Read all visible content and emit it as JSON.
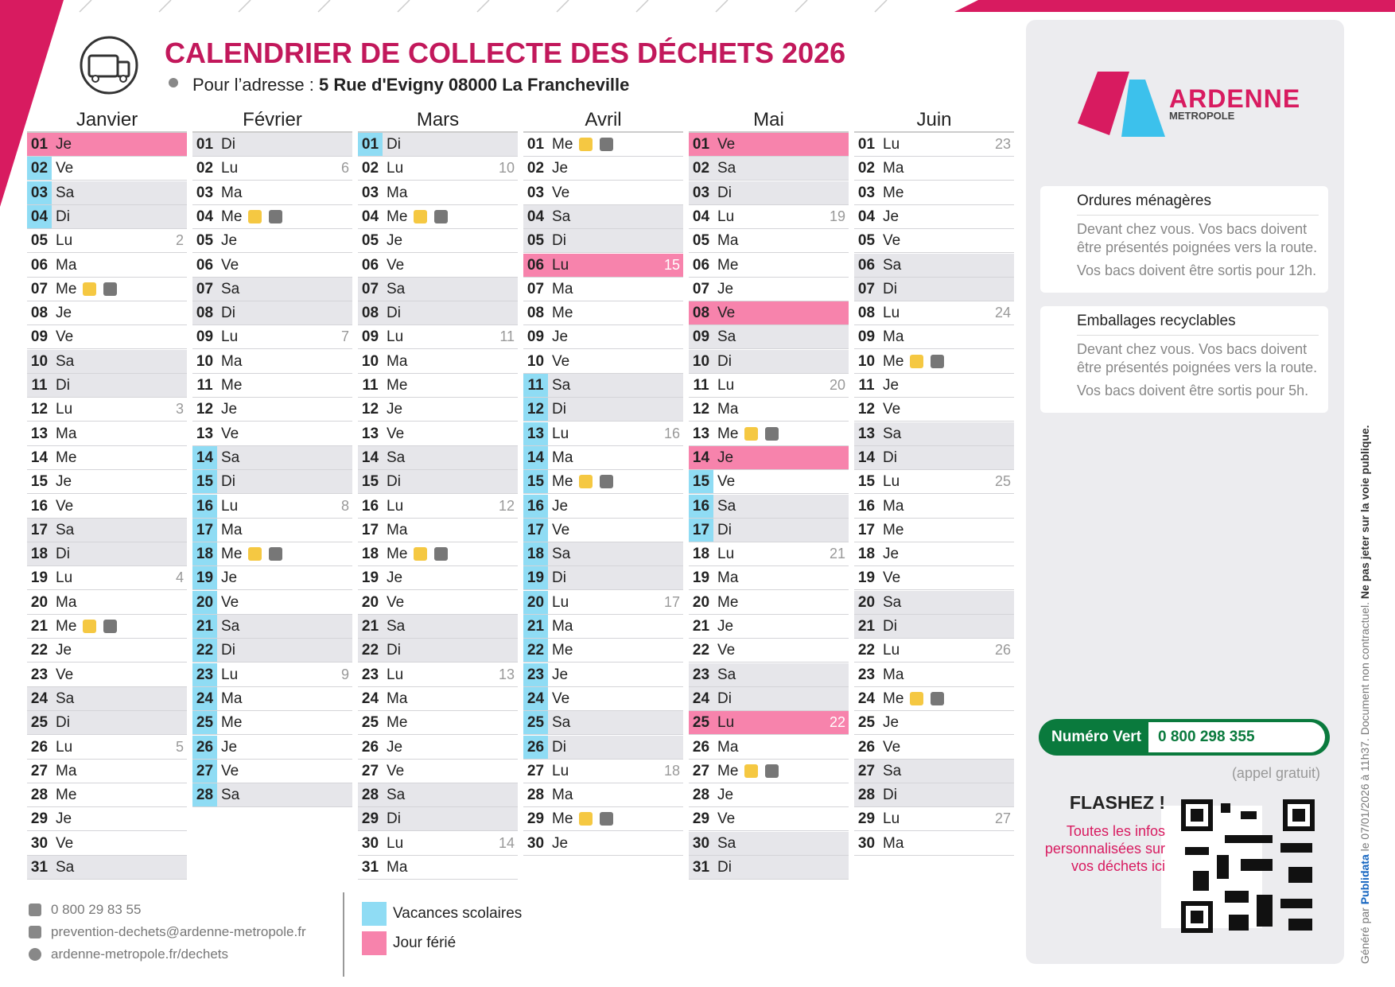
{
  "header": {
    "title": "CALENDRIER DE COLLECTE DES DÉCHETS 2026",
    "address_label": "Pour l’adresse :",
    "address": "5 Rue d'Evigny 08000 La Francheville"
  },
  "months": [
    {
      "name": "Janvier",
      "days": [
        {
          "d": "01",
          "w": "Je",
          "fer": true
        },
        {
          "d": "02",
          "w": "Ve",
          "vac": true
        },
        {
          "d": "03",
          "w": "Sa",
          "we": true,
          "vac": true
        },
        {
          "d": "04",
          "w": "Di",
          "we": true,
          "vac": true
        },
        {
          "d": "05",
          "w": "Lu",
          "wk": 2
        },
        {
          "d": "06",
          "w": "Ma"
        },
        {
          "d": "07",
          "w": "Me",
          "col": true
        },
        {
          "d": "08",
          "w": "Je"
        },
        {
          "d": "09",
          "w": "Ve"
        },
        {
          "d": "10",
          "w": "Sa",
          "we": true
        },
        {
          "d": "11",
          "w": "Di",
          "we": true
        },
        {
          "d": "12",
          "w": "Lu",
          "wk": 3
        },
        {
          "d": "13",
          "w": "Ma"
        },
        {
          "d": "14",
          "w": "Me"
        },
        {
          "d": "15",
          "w": "Je"
        },
        {
          "d": "16",
          "w": "Ve"
        },
        {
          "d": "17",
          "w": "Sa",
          "we": true
        },
        {
          "d": "18",
          "w": "Di",
          "we": true
        },
        {
          "d": "19",
          "w": "Lu",
          "wk": 4
        },
        {
          "d": "20",
          "w": "Ma"
        },
        {
          "d": "21",
          "w": "Me",
          "col": true
        },
        {
          "d": "22",
          "w": "Je"
        },
        {
          "d": "23",
          "w": "Ve"
        },
        {
          "d": "24",
          "w": "Sa",
          "we": true
        },
        {
          "d": "25",
          "w": "Di",
          "we": true
        },
        {
          "d": "26",
          "w": "Lu",
          "wk": 5
        },
        {
          "d": "27",
          "w": "Ma"
        },
        {
          "d": "28",
          "w": "Me"
        },
        {
          "d": "29",
          "w": "Je"
        },
        {
          "d": "30",
          "w": "Ve"
        },
        {
          "d": "31",
          "w": "Sa",
          "we": true
        }
      ]
    },
    {
      "name": "Février",
      "days": [
        {
          "d": "01",
          "w": "Di",
          "we": true
        },
        {
          "d": "02",
          "w": "Lu",
          "wk": 6
        },
        {
          "d": "03",
          "w": "Ma"
        },
        {
          "d": "04",
          "w": "Me",
          "col": true
        },
        {
          "d": "05",
          "w": "Je"
        },
        {
          "d": "06",
          "w": "Ve"
        },
        {
          "d": "07",
          "w": "Sa",
          "we": true
        },
        {
          "d": "08",
          "w": "Di",
          "we": true
        },
        {
          "d": "09",
          "w": "Lu",
          "wk": 7
        },
        {
          "d": "10",
          "w": "Ma"
        },
        {
          "d": "11",
          "w": "Me"
        },
        {
          "d": "12",
          "w": "Je"
        },
        {
          "d": "13",
          "w": "Ve"
        },
        {
          "d": "14",
          "w": "Sa",
          "we": true,
          "vac": true
        },
        {
          "d": "15",
          "w": "Di",
          "we": true,
          "vac": true
        },
        {
          "d": "16",
          "w": "Lu",
          "wk": 8,
          "vac": true
        },
        {
          "d": "17",
          "w": "Ma",
          "vac": true
        },
        {
          "d": "18",
          "w": "Me",
          "col": true,
          "vac": true
        },
        {
          "d": "19",
          "w": "Je",
          "vac": true
        },
        {
          "d": "20",
          "w": "Ve",
          "vac": true
        },
        {
          "d": "21",
          "w": "Sa",
          "we": true,
          "vac": true
        },
        {
          "d": "22",
          "w": "Di",
          "we": true,
          "vac": true
        },
        {
          "d": "23",
          "w": "Lu",
          "wk": 9,
          "vac": true
        },
        {
          "d": "24",
          "w": "Ma",
          "vac": true
        },
        {
          "d": "25",
          "w": "Me",
          "vac": true
        },
        {
          "d": "26",
          "w": "Je",
          "vac": true
        },
        {
          "d": "27",
          "w": "Ve",
          "vac": true
        },
        {
          "d": "28",
          "w": "Sa",
          "we": true,
          "vac": true
        }
      ]
    },
    {
      "name": "Mars",
      "days": [
        {
          "d": "01",
          "w": "Di",
          "we": true,
          "vac": true
        },
        {
          "d": "02",
          "w": "Lu",
          "wk": 10
        },
        {
          "d": "03",
          "w": "Ma"
        },
        {
          "d": "04",
          "w": "Me",
          "col": true
        },
        {
          "d": "05",
          "w": "Je"
        },
        {
          "d": "06",
          "w": "Ve"
        },
        {
          "d": "07",
          "w": "Sa",
          "we": true
        },
        {
          "d": "08",
          "w": "Di",
          "we": true
        },
        {
          "d": "09",
          "w": "Lu",
          "wk": 11
        },
        {
          "d": "10",
          "w": "Ma"
        },
        {
          "d": "11",
          "w": "Me"
        },
        {
          "d": "12",
          "w": "Je"
        },
        {
          "d": "13",
          "w": "Ve"
        },
        {
          "d": "14",
          "w": "Sa",
          "we": true
        },
        {
          "d": "15",
          "w": "Di",
          "we": true
        },
        {
          "d": "16",
          "w": "Lu",
          "wk": 12
        },
        {
          "d": "17",
          "w": "Ma"
        },
        {
          "d": "18",
          "w": "Me",
          "col": true
        },
        {
          "d": "19",
          "w": "Je"
        },
        {
          "d": "20",
          "w": "Ve"
        },
        {
          "d": "21",
          "w": "Sa",
          "we": true
        },
        {
          "d": "22",
          "w": "Di",
          "we": true
        },
        {
          "d": "23",
          "w": "Lu",
          "wk": 13
        },
        {
          "d": "24",
          "w": "Ma"
        },
        {
          "d": "25",
          "w": "Me"
        },
        {
          "d": "26",
          "w": "Je"
        },
        {
          "d": "27",
          "w": "Ve"
        },
        {
          "d": "28",
          "w": "Sa",
          "we": true
        },
        {
          "d": "29",
          "w": "Di",
          "we": true
        },
        {
          "d": "30",
          "w": "Lu",
          "wk": 14
        },
        {
          "d": "31",
          "w": "Ma"
        }
      ]
    },
    {
      "name": "Avril",
      "days": [
        {
          "d": "01",
          "w": "Me",
          "col": true
        },
        {
          "d": "02",
          "w": "Je"
        },
        {
          "d": "03",
          "w": "Ve"
        },
        {
          "d": "04",
          "w": "Sa",
          "we": true
        },
        {
          "d": "05",
          "w": "Di",
          "we": true
        },
        {
          "d": "06",
          "w": "Lu",
          "wk": 15,
          "fer": true
        },
        {
          "d": "07",
          "w": "Ma"
        },
        {
          "d": "08",
          "w": "Me"
        },
        {
          "d": "09",
          "w": "Je"
        },
        {
          "d": "10",
          "w": "Ve"
        },
        {
          "d": "11",
          "w": "Sa",
          "we": true,
          "vac": true
        },
        {
          "d": "12",
          "w": "Di",
          "we": true,
          "vac": true
        },
        {
          "d": "13",
          "w": "Lu",
          "wk": 16,
          "vac": true
        },
        {
          "d": "14",
          "w": "Ma",
          "vac": true
        },
        {
          "d": "15",
          "w": "Me",
          "col": true,
          "vac": true
        },
        {
          "d": "16",
          "w": "Je",
          "vac": true
        },
        {
          "d": "17",
          "w": "Ve",
          "vac": true
        },
        {
          "d": "18",
          "w": "Sa",
          "we": true,
          "vac": true
        },
        {
          "d": "19",
          "w": "Di",
          "we": true,
          "vac": true
        },
        {
          "d": "20",
          "w": "Lu",
          "wk": 17,
          "vac": true
        },
        {
          "d": "21",
          "w": "Ma",
          "vac": true
        },
        {
          "d": "22",
          "w": "Me",
          "vac": true
        },
        {
          "d": "23",
          "w": "Je",
          "vac": true
        },
        {
          "d": "24",
          "w": "Ve",
          "vac": true
        },
        {
          "d": "25",
          "w": "Sa",
          "we": true,
          "vac": true
        },
        {
          "d": "26",
          "w": "Di",
          "we": true,
          "vac": true
        },
        {
          "d": "27",
          "w": "Lu",
          "wk": 18
        },
        {
          "d": "28",
          "w": "Ma"
        },
        {
          "d": "29",
          "w": "Me",
          "col": true
        },
        {
          "d": "30",
          "w": "Je"
        }
      ]
    },
    {
      "name": "Mai",
      "days": [
        {
          "d": "01",
          "w": "Ve",
          "fer": true
        },
        {
          "d": "02",
          "w": "Sa",
          "we": true
        },
        {
          "d": "03",
          "w": "Di",
          "we": true
        },
        {
          "d": "04",
          "w": "Lu",
          "wk": 19
        },
        {
          "d": "05",
          "w": "Ma"
        },
        {
          "d": "06",
          "w": "Me"
        },
        {
          "d": "07",
          "w": "Je"
        },
        {
          "d": "08",
          "w": "Ve",
          "fer": true
        },
        {
          "d": "09",
          "w": "Sa",
          "we": true
        },
        {
          "d": "10",
          "w": "Di",
          "we": true
        },
        {
          "d": "11",
          "w": "Lu",
          "wk": 20
        },
        {
          "d": "12",
          "w": "Ma"
        },
        {
          "d": "13",
          "w": "Me",
          "col": true
        },
        {
          "d": "14",
          "w": "Je",
          "fer": true
        },
        {
          "d": "15",
          "w": "Ve",
          "vac": true
        },
        {
          "d": "16",
          "w": "Sa",
          "we": true,
          "vac": true
        },
        {
          "d": "17",
          "w": "Di",
          "we": true,
          "vac": true
        },
        {
          "d": "18",
          "w": "Lu",
          "wk": 21
        },
        {
          "d": "19",
          "w": "Ma"
        },
        {
          "d": "20",
          "w": "Me"
        },
        {
          "d": "21",
          "w": "Je"
        },
        {
          "d": "22",
          "w": "Ve"
        },
        {
          "d": "23",
          "w": "Sa",
          "we": true
        },
        {
          "d": "24",
          "w": "Di",
          "we": true
        },
        {
          "d": "25",
          "w": "Lu",
          "wk": 22,
          "fer": true
        },
        {
          "d": "26",
          "w": "Ma"
        },
        {
          "d": "27",
          "w": "Me",
          "col": true
        },
        {
          "d": "28",
          "w": "Je"
        },
        {
          "d": "29",
          "w": "Ve"
        },
        {
          "d": "30",
          "w": "Sa",
          "we": true
        },
        {
          "d": "31",
          "w": "Di",
          "we": true
        }
      ]
    },
    {
      "name": "Juin",
      "days": [
        {
          "d": "01",
          "w": "Lu",
          "wk": 23
        },
        {
          "d": "02",
          "w": "Ma"
        },
        {
          "d": "03",
          "w": "Me"
        },
        {
          "d": "04",
          "w": "Je"
        },
        {
          "d": "05",
          "w": "Ve"
        },
        {
          "d": "06",
          "w": "Sa",
          "we": true
        },
        {
          "d": "07",
          "w": "Di",
          "we": true
        },
        {
          "d": "08",
          "w": "Lu",
          "wk": 24
        },
        {
          "d": "09",
          "w": "Ma"
        },
        {
          "d": "10",
          "w": "Me",
          "col": true
        },
        {
          "d": "11",
          "w": "Je"
        },
        {
          "d": "12",
          "w": "Ve"
        },
        {
          "d": "13",
          "w": "Sa",
          "we": true
        },
        {
          "d": "14",
          "w": "Di",
          "we": true
        },
        {
          "d": "15",
          "w": "Lu",
          "wk": 25
        },
        {
          "d": "16",
          "w": "Ma"
        },
        {
          "d": "17",
          "w": "Me"
        },
        {
          "d": "18",
          "w": "Je"
        },
        {
          "d": "19",
          "w": "Ve"
        },
        {
          "d": "20",
          "w": "Sa",
          "we": true
        },
        {
          "d": "21",
          "w": "Di",
          "we": true
        },
        {
          "d": "22",
          "w": "Lu",
          "wk": 26
        },
        {
          "d": "23",
          "w": "Ma"
        },
        {
          "d": "24",
          "w": "Me",
          "col": true
        },
        {
          "d": "25",
          "w": "Je"
        },
        {
          "d": "26",
          "w": "Ve"
        },
        {
          "d": "27",
          "w": "Sa",
          "we": true
        },
        {
          "d": "28",
          "w": "Di",
          "we": true
        },
        {
          "d": "29",
          "w": "Lu",
          "wk": 27
        },
        {
          "d": "30",
          "w": "Ma"
        }
      ]
    }
  ],
  "logo": {
    "name": "ARDENNE",
    "sub": "METROPOLE"
  },
  "info": [
    {
      "title": "Ordures ménagères",
      "lines": [
        "Devant chez vous. Vos bacs doivent être présentés poignées vers la route.",
        "Vos bacs doivent être sortis pour 12h."
      ]
    },
    {
      "title": "Emballages recyclables",
      "lines": [
        "Devant chez vous. Vos bacs doivent être présentés poignées vers la route.",
        "Vos bacs doivent être sortis pour 5h."
      ]
    }
  ],
  "hotline": {
    "label": "Numéro Vert",
    "number": "0 800 298 355",
    "note": "(appel gratuit)"
  },
  "qr": {
    "title": "FLASHEZ !",
    "text": "Toutes les infos personnalisées sur vos déchets ici"
  },
  "contact": [
    "0 800 29 83 55",
    "prevention-dechets@ardenne-metropole.fr",
    "ardenne-metropole.fr/dechets"
  ],
  "legend": [
    "Vacances scolaires",
    "Jour férié"
  ],
  "footer": {
    "generated": "Généré par",
    "brand": "Publidata",
    "date": "le 07/01/2026 à 11h37. Document non contractuel.",
    "warning": "Ne pas jeter sur la voie publique."
  }
}
